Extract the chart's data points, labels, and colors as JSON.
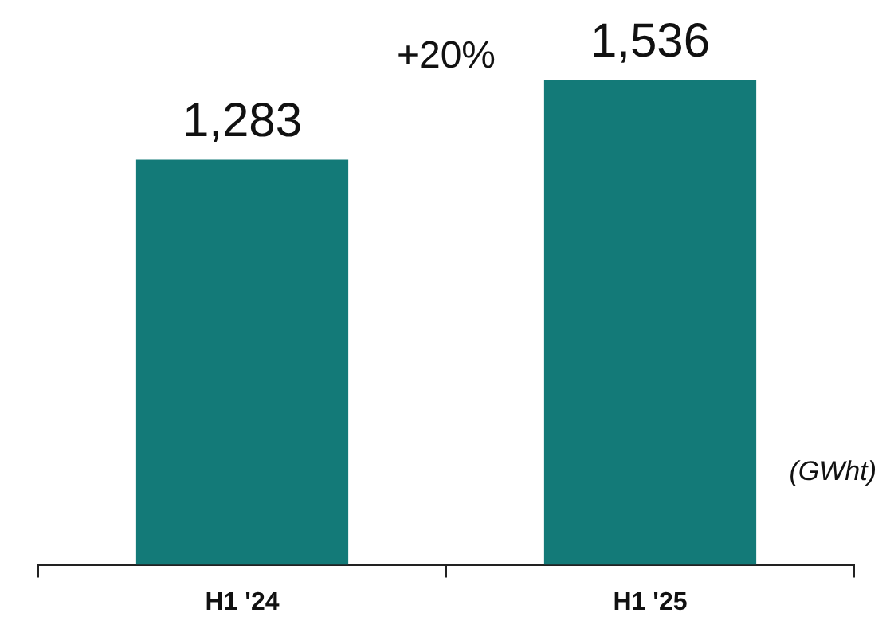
{
  "chart_data": {
    "type": "bar",
    "categories": [
      "H1 '24",
      "H1 '25"
    ],
    "values": [
      1283,
      1536
    ],
    "color": "#137a78",
    "value_labels": [
      "1,283",
      "1,536"
    ],
    "annotations": [
      "+20%",
      "(GWht)"
    ]
  }
}
